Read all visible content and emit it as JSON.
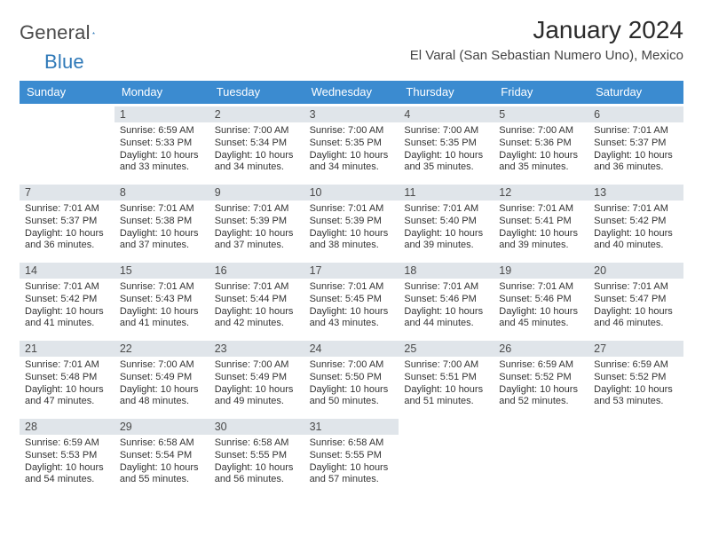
{
  "brand": {
    "first": "General",
    "second": "Blue"
  },
  "title": "January 2024",
  "subtitle": "El Varal (San Sebastian Numero Uno), Mexico",
  "colors": {
    "header_bg": "#3b8bd0",
    "daynum_band": "#e0e5ea",
    "text": "#333333",
    "page_bg": "#ffffff",
    "logo_blue": "#2f79b8"
  },
  "dow": [
    "Sunday",
    "Monday",
    "Tuesday",
    "Wednesday",
    "Thursday",
    "Friday",
    "Saturday"
  ],
  "weeks": [
    [
      {
        "n": "",
        "sunrise": "",
        "sunset": "",
        "daylight": ""
      },
      {
        "n": "1",
        "sunrise": "Sunrise: 6:59 AM",
        "sunset": "Sunset: 5:33 PM",
        "daylight": "Daylight: 10 hours and 33 minutes."
      },
      {
        "n": "2",
        "sunrise": "Sunrise: 7:00 AM",
        "sunset": "Sunset: 5:34 PM",
        "daylight": "Daylight: 10 hours and 34 minutes."
      },
      {
        "n": "3",
        "sunrise": "Sunrise: 7:00 AM",
        "sunset": "Sunset: 5:35 PM",
        "daylight": "Daylight: 10 hours and 34 minutes."
      },
      {
        "n": "4",
        "sunrise": "Sunrise: 7:00 AM",
        "sunset": "Sunset: 5:35 PM",
        "daylight": "Daylight: 10 hours and 35 minutes."
      },
      {
        "n": "5",
        "sunrise": "Sunrise: 7:00 AM",
        "sunset": "Sunset: 5:36 PM",
        "daylight": "Daylight: 10 hours and 35 minutes."
      },
      {
        "n": "6",
        "sunrise": "Sunrise: 7:01 AM",
        "sunset": "Sunset: 5:37 PM",
        "daylight": "Daylight: 10 hours and 36 minutes."
      }
    ],
    [
      {
        "n": "7",
        "sunrise": "Sunrise: 7:01 AM",
        "sunset": "Sunset: 5:37 PM",
        "daylight": "Daylight: 10 hours and 36 minutes."
      },
      {
        "n": "8",
        "sunrise": "Sunrise: 7:01 AM",
        "sunset": "Sunset: 5:38 PM",
        "daylight": "Daylight: 10 hours and 37 minutes."
      },
      {
        "n": "9",
        "sunrise": "Sunrise: 7:01 AM",
        "sunset": "Sunset: 5:39 PM",
        "daylight": "Daylight: 10 hours and 37 minutes."
      },
      {
        "n": "10",
        "sunrise": "Sunrise: 7:01 AM",
        "sunset": "Sunset: 5:39 PM",
        "daylight": "Daylight: 10 hours and 38 minutes."
      },
      {
        "n": "11",
        "sunrise": "Sunrise: 7:01 AM",
        "sunset": "Sunset: 5:40 PM",
        "daylight": "Daylight: 10 hours and 39 minutes."
      },
      {
        "n": "12",
        "sunrise": "Sunrise: 7:01 AM",
        "sunset": "Sunset: 5:41 PM",
        "daylight": "Daylight: 10 hours and 39 minutes."
      },
      {
        "n": "13",
        "sunrise": "Sunrise: 7:01 AM",
        "sunset": "Sunset: 5:42 PM",
        "daylight": "Daylight: 10 hours and 40 minutes."
      }
    ],
    [
      {
        "n": "14",
        "sunrise": "Sunrise: 7:01 AM",
        "sunset": "Sunset: 5:42 PM",
        "daylight": "Daylight: 10 hours and 41 minutes."
      },
      {
        "n": "15",
        "sunrise": "Sunrise: 7:01 AM",
        "sunset": "Sunset: 5:43 PM",
        "daylight": "Daylight: 10 hours and 41 minutes."
      },
      {
        "n": "16",
        "sunrise": "Sunrise: 7:01 AM",
        "sunset": "Sunset: 5:44 PM",
        "daylight": "Daylight: 10 hours and 42 minutes."
      },
      {
        "n": "17",
        "sunrise": "Sunrise: 7:01 AM",
        "sunset": "Sunset: 5:45 PM",
        "daylight": "Daylight: 10 hours and 43 minutes."
      },
      {
        "n": "18",
        "sunrise": "Sunrise: 7:01 AM",
        "sunset": "Sunset: 5:46 PM",
        "daylight": "Daylight: 10 hours and 44 minutes."
      },
      {
        "n": "19",
        "sunrise": "Sunrise: 7:01 AM",
        "sunset": "Sunset: 5:46 PM",
        "daylight": "Daylight: 10 hours and 45 minutes."
      },
      {
        "n": "20",
        "sunrise": "Sunrise: 7:01 AM",
        "sunset": "Sunset: 5:47 PM",
        "daylight": "Daylight: 10 hours and 46 minutes."
      }
    ],
    [
      {
        "n": "21",
        "sunrise": "Sunrise: 7:01 AM",
        "sunset": "Sunset: 5:48 PM",
        "daylight": "Daylight: 10 hours and 47 minutes."
      },
      {
        "n": "22",
        "sunrise": "Sunrise: 7:00 AM",
        "sunset": "Sunset: 5:49 PM",
        "daylight": "Daylight: 10 hours and 48 minutes."
      },
      {
        "n": "23",
        "sunrise": "Sunrise: 7:00 AM",
        "sunset": "Sunset: 5:49 PM",
        "daylight": "Daylight: 10 hours and 49 minutes."
      },
      {
        "n": "24",
        "sunrise": "Sunrise: 7:00 AM",
        "sunset": "Sunset: 5:50 PM",
        "daylight": "Daylight: 10 hours and 50 minutes."
      },
      {
        "n": "25",
        "sunrise": "Sunrise: 7:00 AM",
        "sunset": "Sunset: 5:51 PM",
        "daylight": "Daylight: 10 hours and 51 minutes."
      },
      {
        "n": "26",
        "sunrise": "Sunrise: 6:59 AM",
        "sunset": "Sunset: 5:52 PM",
        "daylight": "Daylight: 10 hours and 52 minutes."
      },
      {
        "n": "27",
        "sunrise": "Sunrise: 6:59 AM",
        "sunset": "Sunset: 5:52 PM",
        "daylight": "Daylight: 10 hours and 53 minutes."
      }
    ],
    [
      {
        "n": "28",
        "sunrise": "Sunrise: 6:59 AM",
        "sunset": "Sunset: 5:53 PM",
        "daylight": "Daylight: 10 hours and 54 minutes."
      },
      {
        "n": "29",
        "sunrise": "Sunrise: 6:58 AM",
        "sunset": "Sunset: 5:54 PM",
        "daylight": "Daylight: 10 hours and 55 minutes."
      },
      {
        "n": "30",
        "sunrise": "Sunrise: 6:58 AM",
        "sunset": "Sunset: 5:55 PM",
        "daylight": "Daylight: 10 hours and 56 minutes."
      },
      {
        "n": "31",
        "sunrise": "Sunrise: 6:58 AM",
        "sunset": "Sunset: 5:55 PM",
        "daylight": "Daylight: 10 hours and 57 minutes."
      },
      {
        "n": "",
        "sunrise": "",
        "sunset": "",
        "daylight": ""
      },
      {
        "n": "",
        "sunrise": "",
        "sunset": "",
        "daylight": ""
      },
      {
        "n": "",
        "sunrise": "",
        "sunset": "",
        "daylight": ""
      }
    ]
  ]
}
